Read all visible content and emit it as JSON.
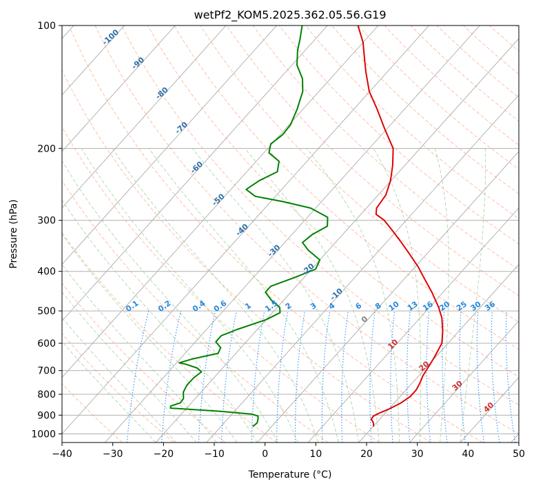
{
  "chart_data": {
    "type": "line",
    "title": "wetPf2_KOM5.2025.362.05.56.G19",
    "xlabel": "Temperature (°C)",
    "ylabel": "Pressure (hPa)",
    "xlim": [
      -40,
      50
    ],
    "ylim": [
      1050,
      100
    ],
    "yscale": "log",
    "x_ticks": [
      "−40",
      "−30",
      "−20",
      "−10",
      "0",
      "10",
      "20",
      "30",
      "40",
      "50"
    ],
    "y_ticks": [
      "100",
      "200",
      "300",
      "400",
      "500",
      "600",
      "700",
      "800",
      "900",
      "1000"
    ],
    "grid": true,
    "skew_t": true,
    "series": [
      {
        "color": "#e00000",
        "points": [
          {
            "p": 960,
            "t": 20.1
          },
          {
            "p": 940,
            "t": 19.4
          },
          {
            "p": 920,
            "t": 18.3
          },
          {
            "p": 905,
            "t": 18.2
          },
          {
            "p": 890,
            "t": 18.8
          },
          {
            "p": 870,
            "t": 20.0
          },
          {
            "p": 840,
            "t": 21.3
          },
          {
            "p": 810,
            "t": 22.0
          },
          {
            "p": 780,
            "t": 22.0
          },
          {
            "p": 750,
            "t": 21.5
          },
          {
            "p": 720,
            "t": 20.8
          },
          {
            "p": 690,
            "t": 20.4
          },
          {
            "p": 650,
            "t": 19.8
          },
          {
            "p": 600,
            "t": 18.8
          },
          {
            "p": 560,
            "t": 16.8
          },
          {
            "p": 520,
            "t": 14.3
          },
          {
            "p": 490,
            "t": 11.8
          },
          {
            "p": 450,
            "t": 7.8
          },
          {
            "p": 420,
            "t": 4.3
          },
          {
            "p": 390,
            "t": 0.6
          },
          {
            "p": 360,
            "t": -3.8
          },
          {
            "p": 340,
            "t": -7.0
          },
          {
            "p": 320,
            "t": -10.5
          },
          {
            "p": 300,
            "t": -14.3
          },
          {
            "p": 290,
            "t": -17.0
          },
          {
            "p": 280,
            "t": -18.0
          },
          {
            "p": 260,
            "t": -18.5
          },
          {
            "p": 240,
            "t": -20.1
          },
          {
            "p": 220,
            "t": -22.4
          },
          {
            "p": 200,
            "t": -25.3
          },
          {
            "p": 180,
            "t": -30.2
          },
          {
            "p": 160,
            "t": -35.5
          },
          {
            "p": 145,
            "t": -40.1
          },
          {
            "p": 130,
            "t": -44.2
          },
          {
            "p": 120,
            "t": -47.0
          },
          {
            "p": 110,
            "t": -50.0
          },
          {
            "p": 100,
            "t": -54.0
          }
        ]
      },
      {
        "color": "#008000",
        "points": [
          {
            "p": 960,
            "t": -3.7
          },
          {
            "p": 940,
            "t": -3.5
          },
          {
            "p": 920,
            "t": -4.0
          },
          {
            "p": 905,
            "t": -4.5
          },
          {
            "p": 895,
            "t": -6.0
          },
          {
            "p": 880,
            "t": -13.0
          },
          {
            "p": 865,
            "t": -23.2
          },
          {
            "p": 855,
            "t": -23.5
          },
          {
            "p": 840,
            "t": -22.2
          },
          {
            "p": 820,
            "t": -22.3
          },
          {
            "p": 790,
            "t": -23.5
          },
          {
            "p": 760,
            "t": -24.0
          },
          {
            "p": 730,
            "t": -24.0
          },
          {
            "p": 705,
            "t": -23.5
          },
          {
            "p": 690,
            "t": -25.0
          },
          {
            "p": 675,
            "t": -28.0
          },
          {
            "p": 670,
            "t": -29.5
          },
          {
            "p": 655,
            "t": -27.5
          },
          {
            "p": 635,
            "t": -23.5
          },
          {
            "p": 615,
            "t": -24.0
          },
          {
            "p": 595,
            "t": -26.0
          },
          {
            "p": 575,
            "t": -26.0
          },
          {
            "p": 555,
            "t": -24.0
          },
          {
            "p": 525,
            "t": -20.0
          },
          {
            "p": 505,
            "t": -18.5
          },
          {
            "p": 490,
            "t": -19.5
          },
          {
            "p": 470,
            "t": -22.5
          },
          {
            "p": 450,
            "t": -25.0
          },
          {
            "p": 435,
            "t": -25.0
          },
          {
            "p": 415,
            "t": -22.0
          },
          {
            "p": 395,
            "t": -19.2
          },
          {
            "p": 375,
            "t": -20.0
          },
          {
            "p": 355,
            "t": -24.0
          },
          {
            "p": 340,
            "t": -26.5
          },
          {
            "p": 325,
            "t": -26.0
          },
          {
            "p": 310,
            "t": -24.5
          },
          {
            "p": 295,
            "t": -26.0
          },
          {
            "p": 280,
            "t": -31.0
          },
          {
            "p": 270,
            "t": -37.5
          },
          {
            "p": 262,
            "t": -44.0
          },
          {
            "p": 252,
            "t": -47.0
          },
          {
            "p": 240,
            "t": -46.0
          },
          {
            "p": 228,
            "t": -44.0
          },
          {
            "p": 215,
            "t": -45.5
          },
          {
            "p": 205,
            "t": -49.0
          },
          {
            "p": 195,
            "t": -50.2
          },
          {
            "p": 185,
            "t": -49.5
          },
          {
            "p": 175,
            "t": -49.7
          },
          {
            "p": 160,
            "t": -51.2
          },
          {
            "p": 145,
            "t": -53.2
          },
          {
            "p": 135,
            "t": -55.5
          },
          {
            "p": 125,
            "t": -59.0
          },
          {
            "p": 115,
            "t": -61.5
          },
          {
            "p": 108,
            "t": -63.0
          },
          {
            "p": 100,
            "t": -65.0
          }
        ]
      }
    ],
    "mixing_ratio_labels": [
      "0.1",
      "0.2",
      "0.4",
      "0.6",
      "1",
      "1.5",
      "2",
      "3",
      "4",
      "6",
      "8",
      "10",
      "13",
      "16",
      "20",
      "25",
      "30",
      "36"
    ],
    "dry_adiabat_labels": [
      "-100",
      "-90",
      "-80",
      "-70",
      "-60",
      "-50",
      "-40",
      "-30",
      "-20",
      "-10"
    ],
    "freezing_level_label": "0",
    "isotherm_labels_red": [
      "10",
      "20",
      "30",
      "40"
    ],
    "colors": {
      "temperature": "#e00000",
      "dewpoint": "#008000",
      "isotherm": "#a0a0a0",
      "dry_adiabat": "#ffa07a",
      "moist_adiabat": "#90c890",
      "mixing_ratio": "#1e90ff",
      "mixing_ratio_label": "#2288dd",
      "dry_adiabat_label": "#2c6fa8",
      "zero_label": "#808080",
      "iso_label_red": "#d03030"
    }
  }
}
